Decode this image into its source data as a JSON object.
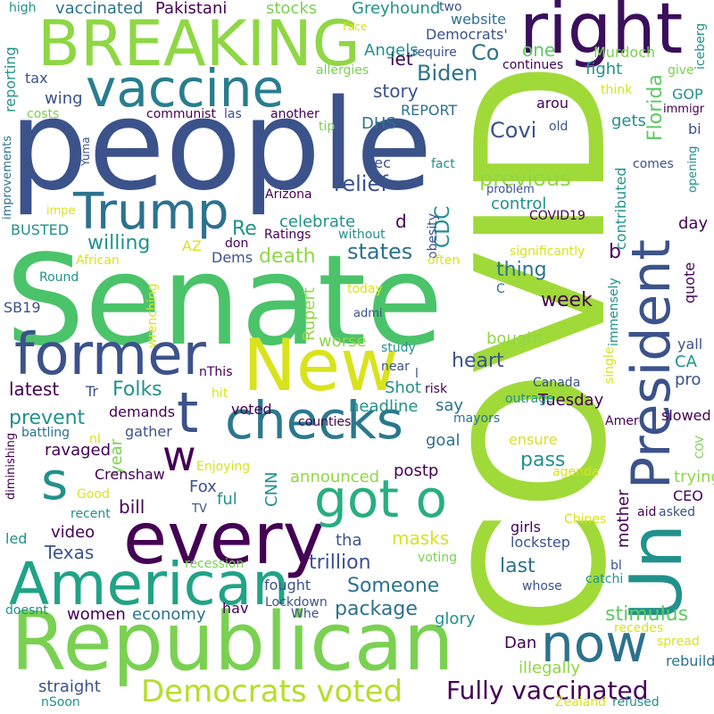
{
  "colors": {
    "background": "#ffffff",
    "palette": [
      "#440154",
      "#3b528b",
      "#2c728e",
      "#21918c",
      "#28ae80",
      "#5ec962",
      "#a0da39",
      "#d9e31d"
    ]
  },
  "words": [
    {
      "text": "people",
      "color": "#3b528b"
    },
    {
      "text": "Senate",
      "color": "#4bc36a"
    },
    {
      "text": "COVID",
      "color": "#a0da39"
    },
    {
      "text": "Republican",
      "color": "#7ad151"
    },
    {
      "text": "BREAKING",
      "color": "#8fd744"
    },
    {
      "text": "right",
      "color": "#3a0f5c"
    },
    {
      "text": "vaccine",
      "color": "#287d8e"
    },
    {
      "text": "Trump",
      "color": "#2c728e"
    },
    {
      "text": "former",
      "color": "#3b528b"
    },
    {
      "text": "checks",
      "color": "#2a788e"
    },
    {
      "text": "American",
      "color": "#20a386"
    },
    {
      "text": "every",
      "color": "#440154"
    },
    {
      "text": "New",
      "color": "#d9e31d"
    },
    {
      "text": "t",
      "color": "#3b528b"
    },
    {
      "text": "w",
      "color": "#440154"
    },
    {
      "text": "s",
      "color": "#21918c"
    },
    {
      "text": "got o",
      "color": "#28ae80"
    },
    {
      "text": "now",
      "color": "#2c728e"
    },
    {
      "text": "President",
      "color": "#3b528b"
    },
    {
      "text": "Un",
      "color": "#21918c"
    },
    {
      "text": "Democrats voted",
      "color": "#b5de2b"
    },
    {
      "text": "Fully vaccinated",
      "color": "#440154"
    },
    {
      "text": "vaccinated",
      "color": "#2c728e"
    },
    {
      "text": "Pakistani",
      "color": "#440154"
    },
    {
      "text": "stocks",
      "color": "#7ad151"
    },
    {
      "text": "Greyhound",
      "color": "#21918c"
    },
    {
      "text": "two",
      "color": "#3b528b"
    },
    {
      "text": "high",
      "color": "#21918c"
    },
    {
      "text": "Face",
      "color": "#d9e31d"
    },
    {
      "text": "website",
      "color": "#2c728e"
    },
    {
      "text": "Democrats'",
      "color": "#3b528b"
    },
    {
      "text": "let",
      "color": "#440154"
    },
    {
      "text": "Co",
      "color": "#2c728e"
    },
    {
      "text": "Angels",
      "color": "#21918c"
    },
    {
      "text": "require",
      "color": "#3b528b"
    },
    {
      "text": "allergies",
      "color": "#7ad151"
    },
    {
      "text": "tax",
      "color": "#3b528b"
    },
    {
      "text": "Biden",
      "color": "#2c728e"
    },
    {
      "text": "one",
      "color": "#5ec962"
    },
    {
      "text": "Murdoch",
      "color": "#7ad151"
    },
    {
      "text": "continues",
      "color": "#440154"
    },
    {
      "text": "fight",
      "color": "#21918c"
    },
    {
      "text": "give",
      "color": "#7ad151"
    },
    {
      "text": "iceberg",
      "color": "#21918c"
    },
    {
      "text": "reporting",
      "color": "#21918c"
    },
    {
      "text": "wing",
      "color": "#3b528b"
    },
    {
      "text": "story",
      "color": "#3b528b"
    },
    {
      "text": "arou",
      "color": "#440154"
    },
    {
      "text": "GOP",
      "color": "#21918c"
    },
    {
      "text": "think",
      "color": "#d9e31d"
    },
    {
      "text": "immigr",
      "color": "#440154"
    },
    {
      "text": "costs",
      "color": "#7ad151"
    },
    {
      "text": "communist",
      "color": "#440154"
    },
    {
      "text": "las",
      "color": "#3b528b"
    },
    {
      "text": "another",
      "color": "#440154"
    },
    {
      "text": "REPORT",
      "color": "#2c728e"
    },
    {
      "text": "tip",
      "color": "#7ad151"
    },
    {
      "text": "DHS",
      "color": "#2c728e"
    },
    {
      "text": "Covi",
      "color": "#3b528b"
    },
    {
      "text": "old",
      "color": "#3b528b"
    },
    {
      "text": "gets",
      "color": "#21918c"
    },
    {
      "text": "bi",
      "color": "#3b528b"
    },
    {
      "text": "improvements",
      "color": "#2c728e"
    },
    {
      "text": "Yuma",
      "color": "#3b528b"
    },
    {
      "text": "Florida",
      "color": "#5ec962"
    },
    {
      "text": "comes",
      "color": "#3b528b"
    },
    {
      "text": "opening",
      "color": "#21918c"
    },
    {
      "text": "rec",
      "color": "#3b528b"
    },
    {
      "text": "fact",
      "color": "#21918c"
    },
    {
      "text": "previous",
      "color": "#8fd744"
    },
    {
      "text": "Arizona",
      "color": "#440154"
    },
    {
      "text": "problem",
      "color": "#3b528b"
    },
    {
      "text": "relief",
      "color": "#3b528b"
    },
    {
      "text": "control",
      "color": "#21918c"
    },
    {
      "text": "contributed",
      "color": "#21918c"
    },
    {
      "text": "impe",
      "color": "#d9e31d"
    },
    {
      "text": "Re",
      "color": "#21918c"
    },
    {
      "text": "d",
      "color": "#440154"
    },
    {
      "text": "celebrate",
      "color": "#21918c"
    },
    {
      "text": "COVID19",
      "color": "#440154"
    },
    {
      "text": "BUSTED",
      "color": "#21918c"
    },
    {
      "text": "CDC",
      "color": "#21918c"
    },
    {
      "text": "obesity",
      "color": "#3b528b"
    },
    {
      "text": "willing",
      "color": "#21918c"
    },
    {
      "text": "AZ",
      "color": "#d9e31d"
    },
    {
      "text": "don",
      "color": "#440154"
    },
    {
      "text": "Ratings",
      "color": "#440154"
    },
    {
      "text": "without",
      "color": "#21918c"
    },
    {
      "text": "day",
      "color": "#440154"
    },
    {
      "text": "African",
      "color": "#d9e31d"
    },
    {
      "text": "Dems",
      "color": "#3b528b"
    },
    {
      "text": "death",
      "color": "#8fd744"
    },
    {
      "text": "states",
      "color": "#2c728e"
    },
    {
      "text": "often",
      "color": "#d9e31d"
    },
    {
      "text": "significantly",
      "color": "#d9e31d"
    },
    {
      "text": "b",
      "color": "#440154"
    },
    {
      "text": "Round",
      "color": "#21918c"
    },
    {
      "text": "thing",
      "color": "#2c728e"
    },
    {
      "text": "C",
      "color": "#2c728e"
    },
    {
      "text": "today",
      "color": "#d9e31d"
    },
    {
      "text": "quote",
      "color": "#440154"
    },
    {
      "text": "SB19",
      "color": "#3b528b"
    },
    {
      "text": "week",
      "color": "#440154"
    },
    {
      "text": "admi",
      "color": "#3b528b"
    },
    {
      "text": "immensely",
      "color": "#21918c"
    },
    {
      "text": "wrenching",
      "color": "#d9e31d"
    },
    {
      "text": "Rupert",
      "color": "#8fd744"
    },
    {
      "text": "bought",
      "color": "#8fd744"
    },
    {
      "text": "yall",
      "color": "#3b528b"
    },
    {
      "text": "study",
      "color": "#21918c"
    },
    {
      "text": "worse",
      "color": "#8fd744"
    },
    {
      "text": "single",
      "color": "#d9e31d"
    },
    {
      "text": "heart",
      "color": "#3b528b"
    },
    {
      "text": "CA",
      "color": "#21918c"
    },
    {
      "text": "latest",
      "color": "#440154"
    },
    {
      "text": "nThis",
      "color": "#440154"
    },
    {
      "text": "near",
      "color": "#3b528b"
    },
    {
      "text": "l",
      "color": "#3b528b"
    },
    {
      "text": "Tr",
      "color": "#3b528b"
    },
    {
      "text": "Folks",
      "color": "#21918c"
    },
    {
      "text": "hit",
      "color": "#d9e31d"
    },
    {
      "text": "Shot",
      "color": "#21918c"
    },
    {
      "text": "risk",
      "color": "#440154"
    },
    {
      "text": "pro",
      "color": "#3b528b"
    },
    {
      "text": "Canada",
      "color": "#3b528b"
    },
    {
      "text": "Tuesday",
      "color": "#440154"
    },
    {
      "text": "headline",
      "color": "#21918c"
    },
    {
      "text": "say",
      "color": "#2c728e"
    },
    {
      "text": "prevent",
      "color": "#21918c"
    },
    {
      "text": "demands",
      "color": "#440154"
    },
    {
      "text": "voted",
      "color": "#440154"
    },
    {
      "text": "outrage",
      "color": "#21918c"
    },
    {
      "text": "Amer",
      "color": "#440154"
    },
    {
      "text": "slowed",
      "color": "#440154"
    },
    {
      "text": "mayors",
      "color": "#2c728e"
    },
    {
      "text": "counties",
      "color": "#440154"
    },
    {
      "text": "battling",
      "color": "#2c728e"
    },
    {
      "text": "gather",
      "color": "#3b528b"
    },
    {
      "text": "goal",
      "color": "#2c728e"
    },
    {
      "text": "COV",
      "color": "#7ad151"
    },
    {
      "text": "year",
      "color": "#7ad151"
    },
    {
      "text": "ravaged",
      "color": "#440154"
    },
    {
      "text": "ensure",
      "color": "#d9e31d"
    },
    {
      "text": "nI",
      "color": "#d9e31d"
    },
    {
      "text": "diminishing",
      "color": "#440154"
    },
    {
      "text": "Enjoying",
      "color": "#d9e31d"
    },
    {
      "text": "pass",
      "color": "#21918c"
    },
    {
      "text": "postp",
      "color": "#440154"
    },
    {
      "text": "announced",
      "color": "#8fd744"
    },
    {
      "text": "agenda",
      "color": "#d9e31d"
    },
    {
      "text": "Crenshaw",
      "color": "#440154"
    },
    {
      "text": "Fox",
      "color": "#3b528b"
    },
    {
      "text": "ful",
      "color": "#21918c"
    },
    {
      "text": "CNN",
      "color": "#21918c"
    },
    {
      "text": "trying",
      "color": "#8fd744"
    },
    {
      "text": "Good",
      "color": "#d9e31d"
    },
    {
      "text": "CEO",
      "color": "#440154"
    },
    {
      "text": "bill",
      "color": "#440154"
    },
    {
      "text": "TV",
      "color": "#3b528b"
    },
    {
      "text": "mother",
      "color": "#440154"
    },
    {
      "text": "recent",
      "color": "#21918c"
    },
    {
      "text": "Chines",
      "color": "#d9e31d"
    },
    {
      "text": "aid",
      "color": "#440154"
    },
    {
      "text": "asked",
      "color": "#3b528b"
    },
    {
      "text": "girls",
      "color": "#440154"
    },
    {
      "text": "video",
      "color": "#440154"
    },
    {
      "text": "masks",
      "color": "#d9e31d"
    },
    {
      "text": "led",
      "color": "#21918c"
    },
    {
      "text": "tha",
      "color": "#3b528b"
    },
    {
      "text": "lockstep",
      "color": "#3b528b"
    },
    {
      "text": "Texas",
      "color": "#3b528b"
    },
    {
      "text": "trillion",
      "color": "#3b528b"
    },
    {
      "text": "recession",
      "color": "#7ad151"
    },
    {
      "text": "voting",
      "color": "#7ad151"
    },
    {
      "text": "last",
      "color": "#2c728e"
    },
    {
      "text": "bl",
      "color": "#3b528b"
    },
    {
      "text": "catchi",
      "color": "#21918c"
    },
    {
      "text": "Someone",
      "color": "#2c728e"
    },
    {
      "text": "fought",
      "color": "#3b528b"
    },
    {
      "text": "whose",
      "color": "#3b528b"
    },
    {
      "text": "package",
      "color": "#2c728e"
    },
    {
      "text": "hav",
      "color": "#440154"
    },
    {
      "text": "doesnt",
      "color": "#21918c"
    },
    {
      "text": "Lockdown",
      "color": "#3b528b"
    },
    {
      "text": "women",
      "color": "#440154"
    },
    {
      "text": "economy",
      "color": "#2c728e"
    },
    {
      "text": "Whe",
      "color": "#3b528b"
    },
    {
      "text": "stimulus",
      "color": "#5ec962"
    },
    {
      "text": "glory",
      "color": "#21918c"
    },
    {
      "text": "recedes",
      "color": "#d9e31d"
    },
    {
      "text": "Dan",
      "color": "#440154"
    },
    {
      "text": "spread",
      "color": "#d9e31d"
    },
    {
      "text": "rebuild",
      "color": "#2c728e"
    },
    {
      "text": "illegally",
      "color": "#8fd744"
    },
    {
      "text": "straight",
      "color": "#3b528b"
    },
    {
      "text": "nSoon",
      "color": "#21918c"
    },
    {
      "text": "Zealand",
      "color": "#d9e31d"
    },
    {
      "text": "refused",
      "color": "#21918c"
    }
  ]
}
